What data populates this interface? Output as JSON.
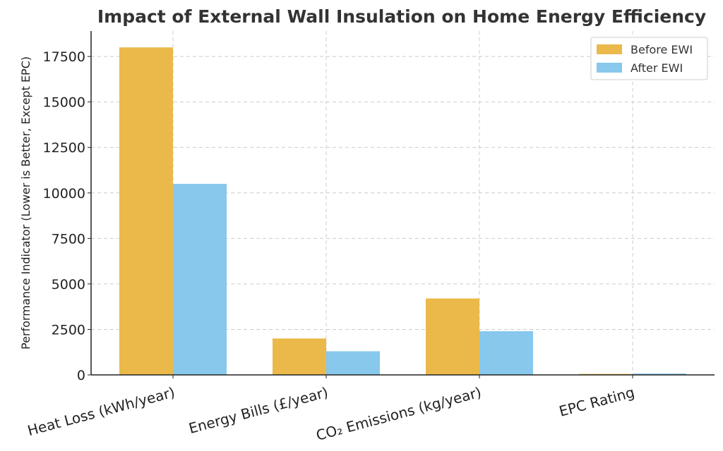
{
  "chart_data": {
    "type": "bar",
    "title": "Impact of External Wall Insulation on Home Energy Efficiency",
    "xlabel": "",
    "ylabel": "Performance Indicator (Lower is Better, Except EPC)",
    "categories": [
      "Heat Loss (kWh/year)",
      "Energy Bills (£/year)",
      "CO₂ Emissions (kg/year)",
      "EPC Rating"
    ],
    "series": [
      {
        "name": "Before EWI",
        "color": "#EBB94A",
        "values": [
          18000,
          2000,
          4200,
          55
        ]
      },
      {
        "name": "After EWI",
        "color": "#87C8EC",
        "values": [
          10500,
          1300,
          2400,
          75
        ]
      }
    ],
    "ylim": [
      0,
      18900
    ],
    "yticks": [
      0,
      2500,
      5000,
      7500,
      10000,
      12500,
      15000,
      17500
    ],
    "ytick_labels": [
      "0",
      "2500",
      "5000",
      "7500",
      "10000",
      "12500",
      "15000",
      "17500"
    ],
    "grid": true,
    "legend_position": "top-right"
  }
}
